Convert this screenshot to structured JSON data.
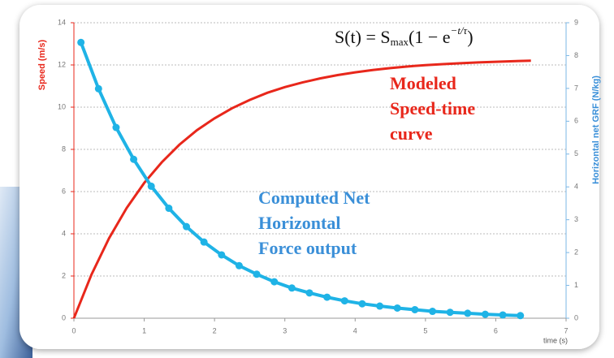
{
  "chart_data": {
    "type": "line",
    "formula": [
      "S(t) = S",
      "max",
      "(1 − e",
      "−t/τ",
      ")"
    ],
    "annotations": [
      {
        "lines": [
          "Modeled",
          "Speed-time",
          "curve"
        ],
        "color": "#e8271b"
      },
      {
        "lines": [
          "Computed Net",
          "Horizontal",
          "Force output"
        ],
        "color": "#3a8fd8"
      }
    ],
    "xlabel": "time (s)",
    "ylabel": "Speed (m/s)",
    "y2label": "Horizontal net GRF (N/kg)",
    "xlim": [
      0,
      7
    ],
    "xticks": [
      0,
      1,
      2,
      3,
      4,
      5,
      6,
      7
    ],
    "ylim": [
      0,
      14
    ],
    "yticks": [
      0,
      2,
      4,
      6,
      8,
      10,
      12,
      14
    ],
    "y2lim": [
      0,
      9
    ],
    "y2ticks": [
      0,
      1,
      2,
      3,
      4,
      5,
      6,
      7,
      8,
      9
    ],
    "grid": true,
    "series": [
      {
        "color": "#e8271b",
        "markers": false,
        "x": [
          0,
          0.25,
          0.5,
          0.75,
          1,
          1.25,
          1.5,
          1.75,
          2,
          2.25,
          2.5,
          2.75,
          3,
          3.25,
          3.5,
          3.75,
          4,
          4.25,
          4.5,
          4.75,
          5,
          5.25,
          5.5,
          5.75,
          6,
          6.25,
          6.5
        ],
        "values": [
          0,
          2.07,
          3.79,
          5.22,
          6.41,
          7.39,
          8.22,
          8.91,
          9.47,
          9.95,
          10.34,
          10.68,
          10.95,
          11.17,
          11.36,
          11.52,
          11.65,
          11.76,
          11.85,
          11.93,
          11.99,
          12.04,
          12.08,
          12.12,
          12.15,
          12.18,
          12.2
        ]
      },
      {
        "color": "#1fb3e6",
        "markers": true,
        "axis": "y2",
        "x": [
          0.1,
          0.35,
          0.6,
          0.85,
          1.1,
          1.35,
          1.6,
          1.85,
          2.1,
          2.35,
          2.6,
          2.85,
          3.1,
          3.35,
          3.6,
          3.85,
          4.1,
          4.35,
          4.6,
          4.85,
          5.1,
          5.35,
          5.6,
          5.85,
          6.1,
          6.35
        ],
        "values": [
          8.4,
          6.99,
          5.81,
          4.84,
          4.02,
          3.35,
          2.79,
          2.32,
          1.93,
          1.6,
          1.34,
          1.11,
          0.92,
          0.77,
          0.64,
          0.53,
          0.44,
          0.37,
          0.31,
          0.26,
          0.21,
          0.18,
          0.15,
          0.12,
          0.1,
          0.08
        ]
      }
    ]
  }
}
